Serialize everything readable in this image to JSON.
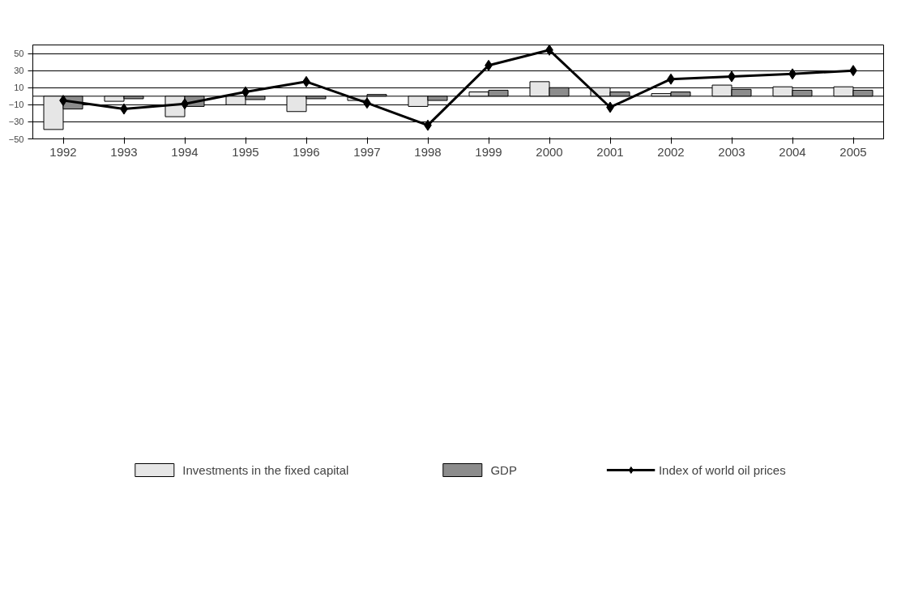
{
  "chart_data": {
    "type": "bar",
    "categories": [
      "1992",
      "1993",
      "1994",
      "1995",
      "1996",
      "1997",
      "1998",
      "1999",
      "2000",
      "2001",
      "2002",
      "2003",
      "2004",
      "2005"
    ],
    "series": [
      {
        "name": "Investments in the fixed capital",
        "color": "#e6e6e6",
        "values": [
          -39,
          -6,
          -24,
          -10,
          -18,
          -5,
          -12,
          5,
          17,
          10,
          3,
          13,
          11,
          11
        ]
      },
      {
        "name": "GDP",
        "color": "#8c8c8c",
        "values": [
          -15,
          -3,
          -12,
          -4,
          -3,
          2,
          -5,
          7,
          10,
          5,
          5,
          8,
          7,
          7
        ]
      },
      {
        "name": "Index of world oil prices",
        "type": "line",
        "color": "#000000",
        "values": [
          -5,
          -15,
          -9,
          5,
          17,
          -8,
          -34,
          36,
          54,
          -13,
          20,
          23,
          26,
          30
        ]
      }
    ],
    "ylim": [
      -50,
      60
    ],
    "yticks": [
      -50,
      -30,
      -10,
      10,
      30,
      50
    ],
    "grid": "y",
    "legend": "bottom",
    "marker": "diamond",
    "line_style": "solid"
  }
}
